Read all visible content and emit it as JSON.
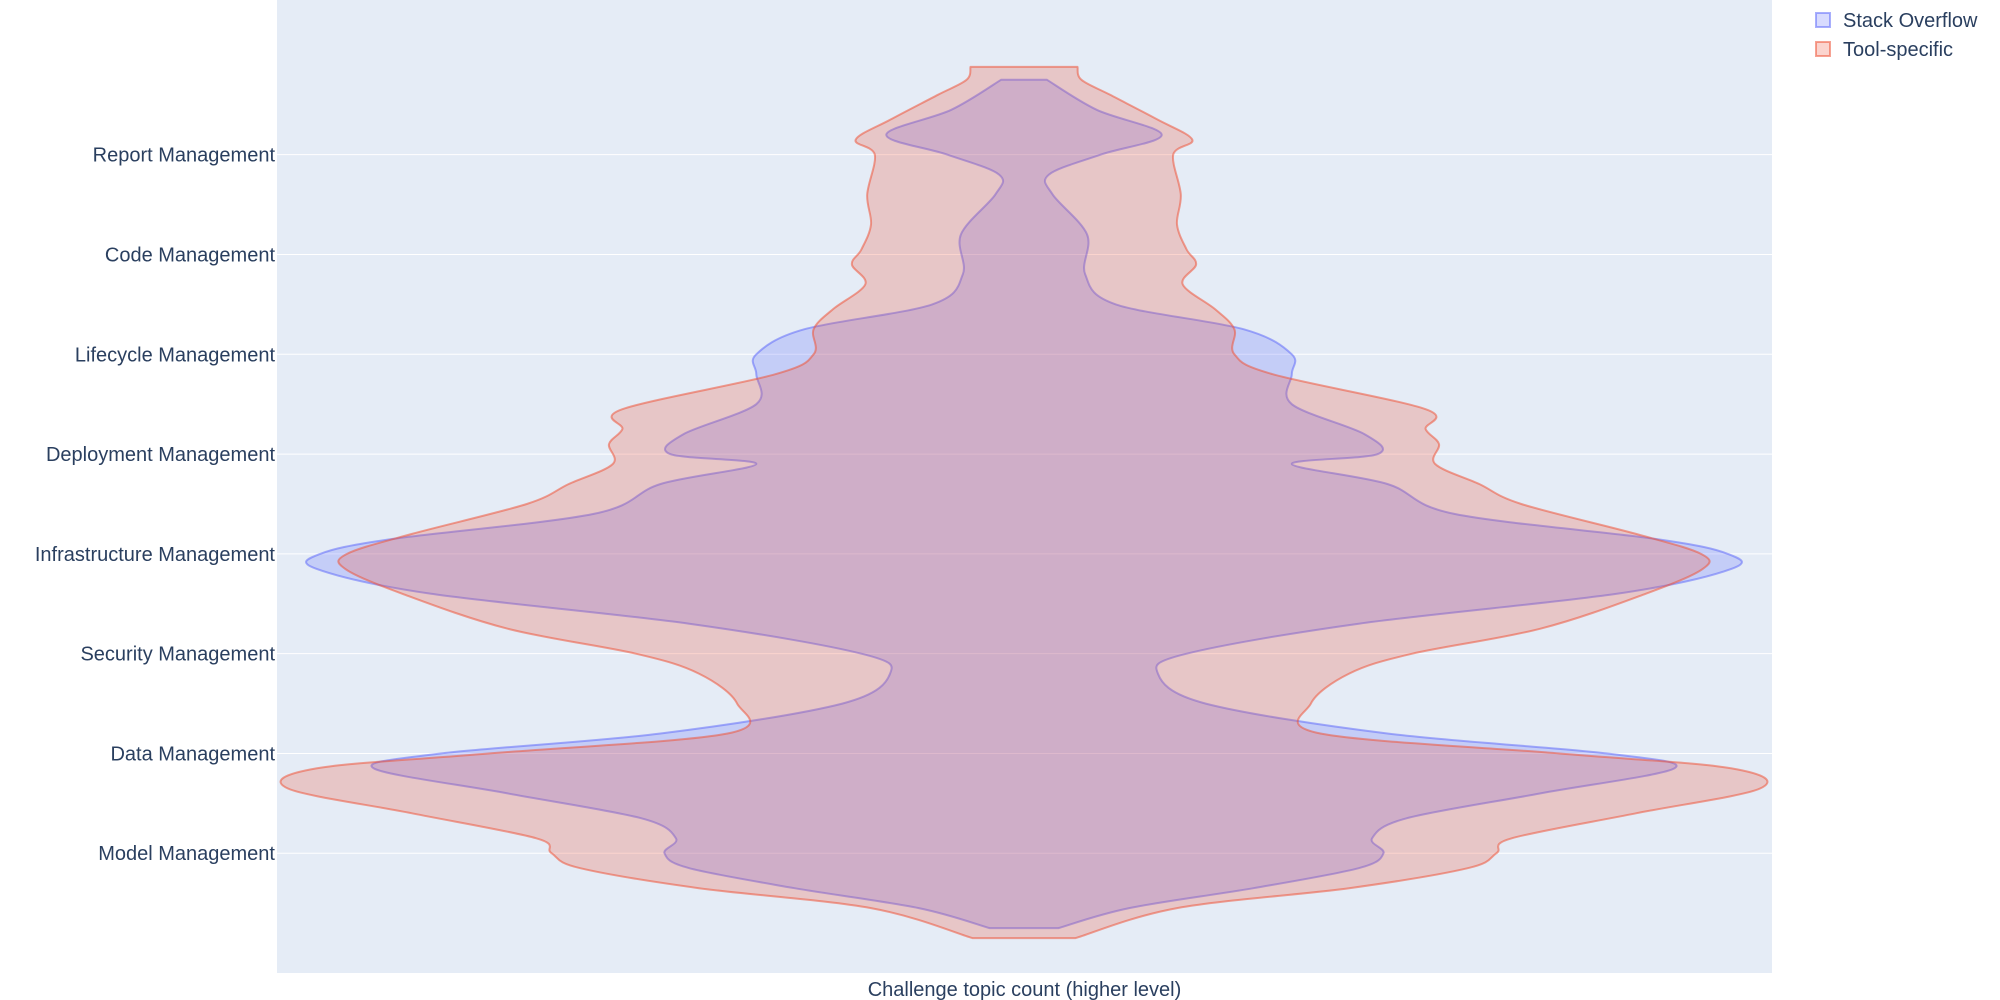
{
  "chart_data": {
    "type": "violin",
    "orientation": "horizontal",
    "xlabel": "Challenge topic count (higher level)",
    "categories": [
      "Model Management",
      "Data Management",
      "Security Management",
      "Infrastructure Management",
      "Deployment Management",
      "Lifecycle Management",
      "Code Management",
      "Report Management"
    ],
    "y_range": [
      -1.2,
      8.55
    ],
    "grid": true,
    "legend_position": "top-right",
    "series": [
      {
        "name": "Stack Overflow",
        "color": "#636efa",
        "fill_color": "rgba(99,110,250,0.25)",
        "line_color": "rgba(99,110,250,0.55)",
        "profile": [
          [
            -0.75,
            18
          ],
          [
            -0.55,
            55
          ],
          [
            -0.35,
            120
          ],
          [
            -0.15,
            175
          ],
          [
            0.0,
            188
          ],
          [
            0.15,
            182
          ],
          [
            0.35,
            200
          ],
          [
            0.6,
            270
          ],
          [
            0.85,
            340
          ],
          [
            1.0,
            305
          ],
          [
            1.2,
            190
          ],
          [
            1.5,
            95
          ],
          [
            1.8,
            70
          ],
          [
            2.0,
            85
          ],
          [
            2.3,
            175
          ],
          [
            2.6,
            310
          ],
          [
            2.85,
            370
          ],
          [
            3.0,
            368
          ],
          [
            3.15,
            330
          ],
          [
            3.4,
            225
          ],
          [
            3.7,
            190
          ],
          [
            3.9,
            140
          ],
          [
            4.0,
            185
          ],
          [
            4.2,
            178
          ],
          [
            4.5,
            140
          ],
          [
            4.8,
            140
          ],
          [
            5.0,
            140
          ],
          [
            5.25,
            115
          ],
          [
            5.5,
            48
          ],
          [
            5.8,
            32
          ],
          [
            6.2,
            33
          ],
          [
            6.6,
            15
          ],
          [
            6.8,
            13
          ],
          [
            7.0,
            40
          ],
          [
            7.2,
            72
          ],
          [
            7.45,
            38
          ],
          [
            7.75,
            12
          ]
        ]
      },
      {
        "name": "Tool-specific",
        "color": "#ef553b",
        "fill_color": "rgba(239,85,59,0.25)",
        "line_color": "rgba(239,85,59,0.55)",
        "profile": [
          [
            -0.85,
            27
          ],
          [
            -0.55,
            80
          ],
          [
            -0.35,
            170
          ],
          [
            -0.15,
            232
          ],
          [
            0.0,
            247
          ],
          [
            0.15,
            255
          ],
          [
            0.4,
            320
          ],
          [
            0.65,
            385
          ],
          [
            0.85,
            370
          ],
          [
            1.0,
            280
          ],
          [
            1.2,
            155
          ],
          [
            1.5,
            150
          ],
          [
            1.8,
            170
          ],
          [
            2.0,
            203
          ],
          [
            2.25,
            270
          ],
          [
            2.6,
            325
          ],
          [
            2.85,
            355
          ],
          [
            3.0,
            354
          ],
          [
            3.2,
            320
          ],
          [
            3.5,
            260
          ],
          [
            3.7,
            238
          ],
          [
            3.9,
            215
          ],
          [
            4.1,
            217
          ],
          [
            4.25,
            210
          ],
          [
            4.45,
            210
          ],
          [
            4.8,
            130
          ],
          [
            5.0,
            110
          ],
          [
            5.25,
            110
          ],
          [
            5.45,
            100
          ],
          [
            5.7,
            83
          ],
          [
            5.9,
            90
          ],
          [
            6.05,
            85
          ],
          [
            6.3,
            80
          ],
          [
            6.6,
            82
          ],
          [
            7.0,
            78
          ],
          [
            7.15,
            88
          ],
          [
            7.35,
            70
          ],
          [
            7.6,
            45
          ],
          [
            7.75,
            30
          ],
          [
            7.88,
            28
          ]
        ]
      }
    ]
  }
}
